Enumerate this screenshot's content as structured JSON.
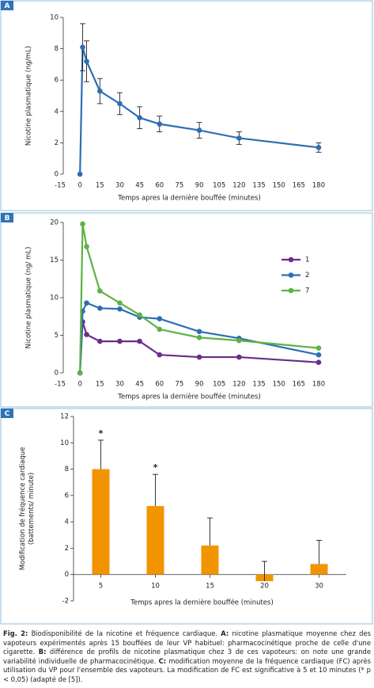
{
  "chart_data": [
    {
      "type": "line",
      "panel": "A",
      "xlabel": "Temps apres la dernière bouffée (minutes)",
      "ylabel": [
        "Nicotine plasmatique (ng/mL)"
      ],
      "x": [
        0,
        2,
        5,
        15,
        30,
        45,
        60,
        90,
        120,
        180
      ],
      "values": [
        0,
        8.1,
        7.2,
        5.3,
        4.5,
        3.6,
        3.2,
        2.8,
        2.3,
        1.7
      ],
      "errors": [
        null,
        1.5,
        1.3,
        0.8,
        0.7,
        0.7,
        0.5,
        0.5,
        0.4,
        0.3
      ],
      "color": "#2f6db3",
      "xlim": [
        -15,
        180
      ],
      "xticks": [
        -15,
        0,
        15,
        30,
        45,
        60,
        75,
        90,
        105,
        120,
        135,
        150,
        165,
        180
      ],
      "ylim": [
        0,
        10
      ],
      "yticks": [
        0,
        2,
        4,
        6,
        8,
        10
      ]
    },
    {
      "type": "line",
      "panel": "B",
      "xlabel": "Temps apres la dernière bouffée (minutes)",
      "ylabel": [
        "Nicotine plasmatique (ng/ mL)"
      ],
      "x": [
        0,
        2,
        5,
        15,
        30,
        45,
        60,
        90,
        120,
        180
      ],
      "series": [
        {
          "name": "1",
          "color": "#6b2d8c",
          "values": [
            0,
            6.8,
            5.1,
            4.2,
            4.2,
            4.2,
            2.4,
            2.1,
            2.1,
            1.4
          ]
        },
        {
          "name": "2",
          "color": "#2f6db3",
          "values": [
            0,
            8.2,
            9.3,
            8.6,
            8.5,
            7.4,
            7.2,
            5.5,
            4.6,
            2.4
          ]
        },
        {
          "name": "7",
          "color": "#5bb344",
          "values": [
            0,
            19.8,
            16.8,
            10.9,
            9.3,
            7.7,
            5.8,
            4.7,
            4.3,
            3.3
          ]
        }
      ],
      "xlim": [
        -15,
        180
      ],
      "xticks": [
        -15,
        0,
        15,
        30,
        45,
        60,
        75,
        90,
        105,
        120,
        135,
        150,
        165,
        180
      ],
      "ylim": [
        0,
        20
      ],
      "yticks": [
        0,
        5,
        10,
        15,
        20
      ]
    },
    {
      "type": "bar",
      "panel": "C",
      "xlabel": "Temps apres la dernière bouffée (minutes)",
      "ylabel": [
        "Modification de fréquence cardiaque",
        "(battements/ minute)"
      ],
      "categories": [
        "5",
        "10",
        "15",
        "20",
        "30"
      ],
      "values": [
        8,
        5.2,
        2.2,
        -0.5,
        0.8
      ],
      "errors": [
        2.2,
        2.4,
        2.1,
        1.5,
        1.8
      ],
      "annotations": [
        "*",
        "*",
        null,
        null,
        null
      ],
      "color": "#f29400",
      "ylim": [
        -2,
        12
      ],
      "yticks": [
        -2,
        0,
        2,
        4,
        6,
        8,
        10,
        12
      ]
    }
  ],
  "caption": [
    {
      "text": "Fig. 2:",
      "bold": true
    },
    {
      "text": " Biodisponibilité de la nicotine et fréquence cardiaque. ",
      "bold": false
    },
    {
      "text": "A:",
      "bold": true
    },
    {
      "text": " nicotine plasmatique moyenne chez des vapoteurs expérimentés après 15 bouffées de leur VP habituel: pharmacocinétique proche de celle d'une cigarette. ",
      "bold": false
    },
    {
      "text": "B:",
      "bold": true
    },
    {
      "text": " différence de profils de nicotine plasmatique chez 3 de ces vapoteurs: on note une grande variabilité individuelle de pharmacocinétique. ",
      "bold": false
    },
    {
      "text": "C:",
      "bold": true
    },
    {
      "text": " modification moyenne de la fréquence cardiaque (FC) après utilisation du VP pour l'ensemble des vapoteurs. La modification de FC est significative à 5 et 10 minutes (* p < 0,05) (adapté de [5]).",
      "bold": false
    }
  ]
}
